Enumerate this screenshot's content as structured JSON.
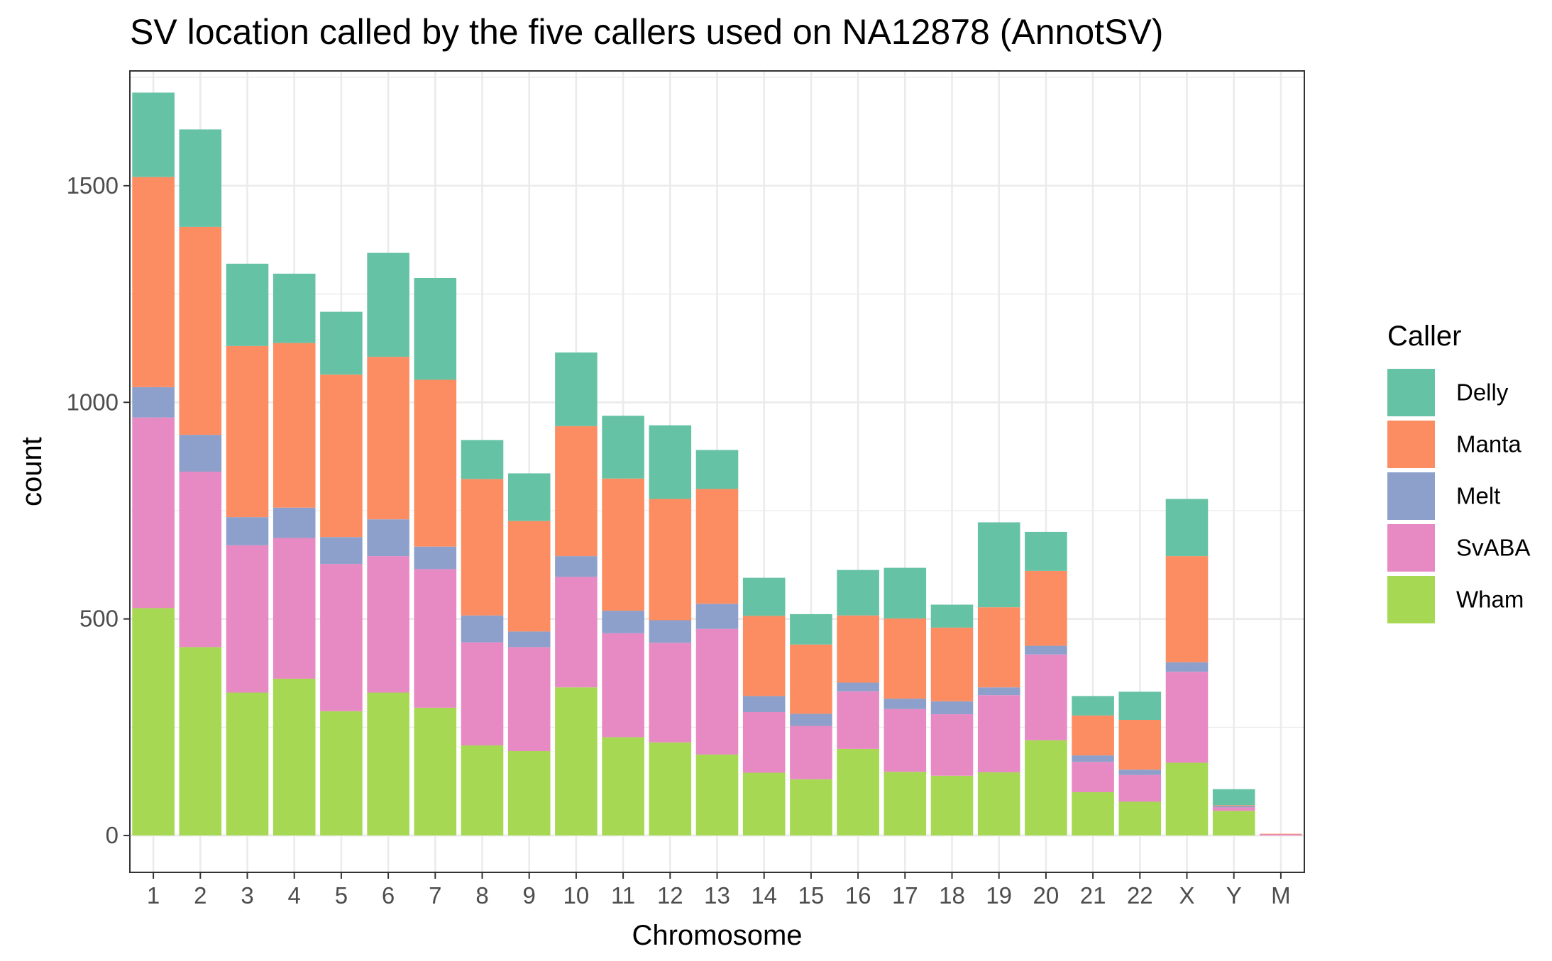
{
  "chart_data": {
    "type": "bar",
    "stacked": true,
    "title": "SV location called by the five callers used on NA12878 (AnnotSV)",
    "xlabel": "Chromosome",
    "ylabel": "count",
    "ylim": [
      -85,
      1765
    ],
    "yticks": [
      0,
      500,
      1000,
      1500
    ],
    "grid": true,
    "legend": {
      "title": "Caller",
      "position": "right"
    },
    "categories": [
      "1",
      "2",
      "3",
      "4",
      "5",
      "6",
      "7",
      "8",
      "9",
      "10",
      "11",
      "12",
      "13",
      "14",
      "15",
      "16",
      "17",
      "18",
      "19",
      "20",
      "21",
      "22",
      "X",
      "Y",
      "M"
    ],
    "series": [
      {
        "name": "Wham",
        "color": "#a6d854",
        "values": [
          525,
          435,
          330,
          362,
          287,
          330,
          295,
          208,
          195,
          342,
          227,
          215,
          187,
          145,
          130,
          200,
          147,
          138,
          146,
          220,
          100,
          78,
          168,
          57,
          0
        ]
      },
      {
        "name": "SvABA",
        "color": "#e78ac3",
        "values": [
          440,
          405,
          340,
          325,
          340,
          315,
          320,
          238,
          240,
          255,
          240,
          230,
          290,
          140,
          123,
          133,
          145,
          142,
          178,
          198,
          70,
          62,
          210,
          8,
          3
        ]
      },
      {
        "name": "Melt",
        "color": "#8da0cb",
        "values": [
          70,
          85,
          65,
          70,
          62,
          85,
          52,
          62,
          36,
          48,
          52,
          52,
          58,
          37,
          28,
          20,
          24,
          30,
          18,
          20,
          15,
          12,
          22,
          3,
          0
        ]
      },
      {
        "name": "Manta",
        "color": "#fc8d62",
        "values": [
          485,
          480,
          395,
          380,
          375,
          375,
          385,
          315,
          255,
          300,
          305,
          280,
          265,
          185,
          160,
          155,
          185,
          170,
          185,
          173,
          92,
          115,
          245,
          2,
          1
        ]
      },
      {
        "name": "Delly",
        "color": "#66c2a5",
        "values": [
          195,
          225,
          190,
          160,
          145,
          240,
          235,
          90,
          110,
          170,
          145,
          170,
          90,
          88,
          70,
          105,
          117,
          53,
          196,
          90,
          45,
          65,
          132,
          37,
          0
        ]
      }
    ]
  }
}
